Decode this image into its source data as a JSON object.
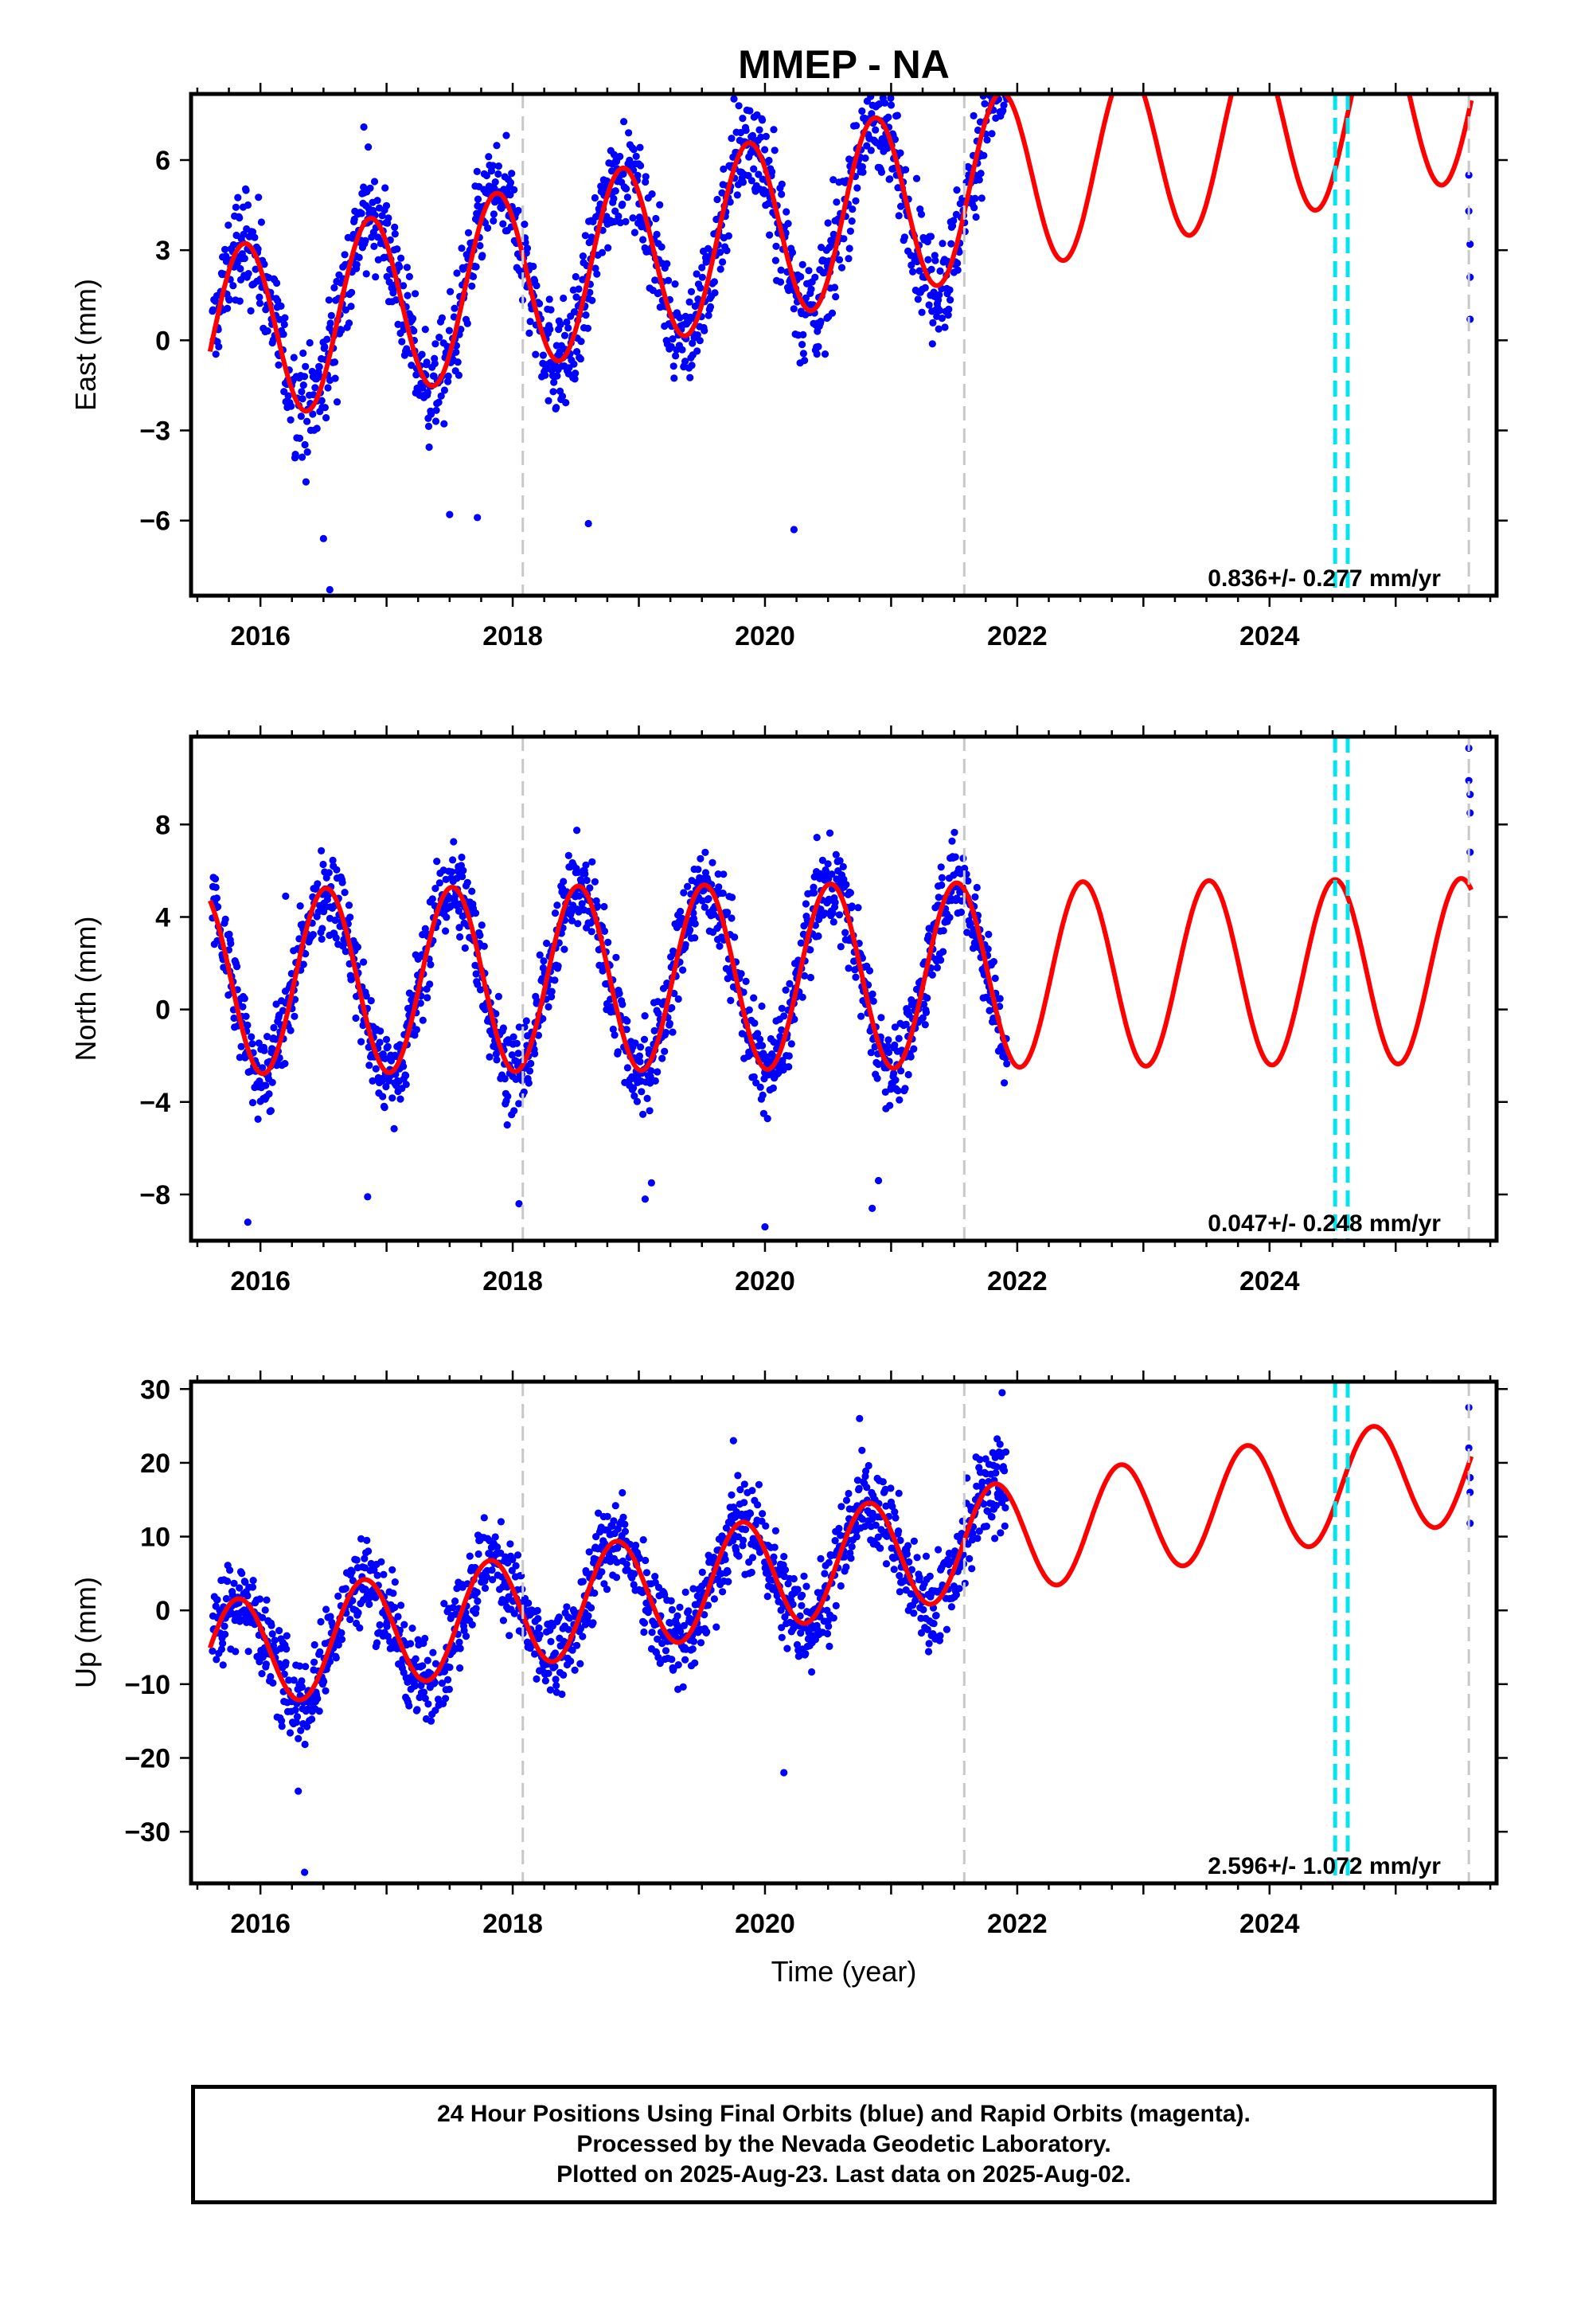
{
  "title": "MMEP - NA",
  "xlabel": "Time (year)",
  "footer": {
    "line1": "24 Hour Positions Using Final Orbits (blue) and Rapid Orbits (magenta).",
    "line2": "Processed by the Nevada Geodetic Laboratory.",
    "line3": "Plotted on 2025-Aug-23. Last data on 2025-Aug-02."
  },
  "colors": {
    "data_points": "#0000ff",
    "model_line": "#ff0000",
    "equipment_change": "#c8c8c8",
    "earthquake_offset": "#00e5ee"
  },
  "chart_data": [
    {
      "type": "scatter",
      "component": "East",
      "ylabel": "East (mm)",
      "xlim": [
        2015.45,
        2025.8
      ],
      "ylim": [
        -8.5,
        8.2
      ],
      "xticks": [
        2016,
        2018,
        2020,
        2022,
        2024
      ],
      "yticks": [
        -6,
        -3,
        0,
        3,
        6
      ],
      "yticklabels": [
        "−6",
        "−3",
        "0",
        "3",
        "6"
      ],
      "rate_text": "0.836+/- 0.277 mm/yr",
      "data_range": [
        2015.62,
        2021.92
      ],
      "model": {
        "offset": 0.0,
        "rate": 0.836,
        "t0": 2015.6,
        "amp": 3.0,
        "phase_year": 2015.87,
        "start": 2015.6,
        "end": 2025.6
      },
      "scatter_noise": 1.3,
      "recent_points": [
        {
          "x": 2025.58,
          "y": 5.5
        },
        {
          "x": 2025.58,
          "y": 4.3
        },
        {
          "x": 2025.59,
          "y": 3.2
        },
        {
          "x": 2025.59,
          "y": 2.1
        },
        {
          "x": 2025.59,
          "y": 0.7
        }
      ],
      "outliers": [
        {
          "x": 2016.55,
          "y": -8.3
        },
        {
          "x": 2016.5,
          "y": -6.6
        },
        {
          "x": 2016.82,
          "y": 7.1
        },
        {
          "x": 2020.23,
          "y": -6.3
        },
        {
          "x": 2020.95,
          "y": 7.9
        },
        {
          "x": 2017.72,
          "y": -5.9
        },
        {
          "x": 2017.5,
          "y": -5.8
        },
        {
          "x": 2018.6,
          "y": -6.1
        }
      ]
    },
    {
      "type": "scatter",
      "component": "North",
      "ylabel": "North (mm)",
      "xlim": [
        2015.45,
        2025.8
      ],
      "ylim": [
        -10,
        11.8
      ],
      "xticks": [
        2016,
        2018,
        2020,
        2022,
        2024
      ],
      "yticks": [
        -8,
        -4,
        0,
        4,
        8
      ],
      "yticklabels": [
        "−8",
        "−4",
        "0",
        "4",
        "8"
      ],
      "rate_text": "0.047+/- 0.248 mm/yr",
      "data_range": [
        2015.62,
        2021.92
      ],
      "model": {
        "offset": 1.2,
        "rate": 0.047,
        "t0": 2015.6,
        "amp": 4.0,
        "phase_year": 2016.52,
        "start": 2015.6,
        "end": 2025.6
      },
      "scatter_noise": 1.4,
      "recent_points": [
        {
          "x": 2025.58,
          "y": 11.3
        },
        {
          "x": 2025.58,
          "y": 9.9
        },
        {
          "x": 2025.59,
          "y": 9.3
        },
        {
          "x": 2025.59,
          "y": 8.5
        },
        {
          "x": 2025.59,
          "y": 6.8
        }
      ],
      "outliers": [
        {
          "x": 2015.9,
          "y": -9.2
        },
        {
          "x": 2016.2,
          "y": 4.9
        },
        {
          "x": 2016.85,
          "y": -8.1
        },
        {
          "x": 2018.05,
          "y": -8.4
        },
        {
          "x": 2019.1,
          "y": -7.5
        },
        {
          "x": 2019.05,
          "y": -8.2
        },
        {
          "x": 2020.0,
          "y": -9.4
        },
        {
          "x": 2020.85,
          "y": -8.6
        },
        {
          "x": 2020.9,
          "y": -7.4
        }
      ]
    },
    {
      "type": "scatter",
      "component": "Up",
      "ylabel": "Up (mm)",
      "xlim": [
        2015.45,
        2025.8
      ],
      "ylim": [
        -37,
        31
      ],
      "xticks": [
        2016,
        2018,
        2020,
        2022,
        2024
      ],
      "yticks": [
        -30,
        -20,
        -10,
        0,
        10,
        20,
        30
      ],
      "yticklabels": [
        "−30",
        "−20",
        "−10",
        "0",
        "10",
        "20",
        "30"
      ],
      "rate_text": "2.596+/- 1.072 mm/yr",
      "data_range": [
        2015.62,
        2021.92
      ],
      "model": {
        "offset": -6.5,
        "rate": 2.596,
        "t0": 2015.6,
        "amp": 7.5,
        "phase_year": 2016.82,
        "start": 2015.6,
        "end": 2025.6
      },
      "scatter_noise": 4.5,
      "recent_points": [
        {
          "x": 2025.58,
          "y": 27.5
        },
        {
          "x": 2025.58,
          "y": 22.0
        },
        {
          "x": 2025.59,
          "y": 18.0
        },
        {
          "x": 2025.59,
          "y": 16.0
        },
        {
          "x": 2025.59,
          "y": 11.8
        }
      ],
      "outliers": [
        {
          "x": 2016.35,
          "y": -35.5
        },
        {
          "x": 2016.3,
          "y": -24.5
        },
        {
          "x": 2020.15,
          "y": -22.0
        },
        {
          "x": 2019.75,
          "y": 23.0
        },
        {
          "x": 2020.75,
          "y": 26.0
        },
        {
          "x": 2021.88,
          "y": 29.5
        }
      ]
    }
  ],
  "reference_lines": {
    "equipment_change_years": [
      2018.08,
      2021.58,
      2025.58
    ],
    "earthquake_offset_years": [
      2024.52,
      2024.62
    ]
  }
}
